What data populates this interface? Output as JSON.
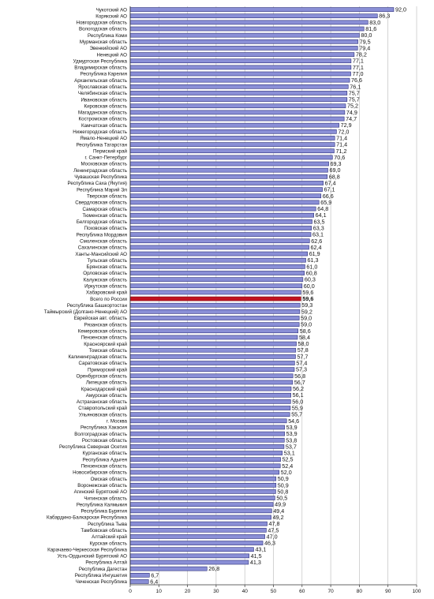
{
  "chart_data": {
    "type": "bar",
    "orientation": "horizontal",
    "title": "",
    "xlabel": "",
    "ylabel": "",
    "xlim": [
      0,
      100
    ],
    "xticks": [
      "0",
      "10",
      "20",
      "30",
      "40",
      "50",
      "60",
      "70",
      "80",
      "90",
      "100"
    ],
    "grid": "vertical",
    "bar_color": "#8a8fd6",
    "bar_border": "#2b2d7a",
    "highlight_color": "#c1121f",
    "highlight_index": 46,
    "categories": [
      "Чукотский АО",
      "Корякский АО",
      "Новгородская область",
      "Вологодская область",
      "Республика Коми",
      "Мурманская область",
      "Эвенкийский АО",
      "Ненецкий АО",
      "Удмуртская Республика",
      "Владимирская область",
      "Республика Карелия",
      "Архангельская область",
      "Ярославская область",
      "Челябинская область",
      "Ивановская область",
      "Кировская область",
      "Магаданская область",
      "Костромская область",
      "Камчатская область",
      "Нижегородская область",
      "Ямало-Ненецкий АО",
      "Республика Татарстан",
      "Пермский край",
      "г. Санкт-Петербург",
      "Московская область",
      "Ленинградская область",
      "Чувашская Республика",
      "Республика Саха (Якутия)",
      "Республика Марий Эл",
      "Тверская область",
      "Свердловская область",
      "Самарская область",
      "Тюменская область",
      "Белгородская область",
      "Псковская область",
      "Республика Мордовия",
      "Смоленская область",
      "Сахалинская область",
      "Ханты-Мансийский АО",
      "Тульская область",
      "Брянская область",
      "Орловская область",
      "Калужская область",
      "Иркутская область",
      "Хабаровский край",
      "Всего по России",
      "Республика Башкортостан",
      "Таймырский (Долгано-Ненецкий) АО",
      "Еврейская авт. область",
      "Рязанская область",
      "Кемеровская область",
      "Пензенская область",
      "Красноярский край",
      "Томская область",
      "Калининградская область",
      "Саратовская область",
      "Приморский край",
      "Оренбургская область",
      "Липецкая область",
      "Краснодарский край",
      "Амурская область",
      "Астраханская область",
      "Ставропольский край",
      "Ульяновская область",
      "г. Москва",
      "Республика Хакасия",
      "Волгоградская область",
      "Ростовская область",
      "Республика Северная Осетия",
      "Курганская область",
      "Республика Адыгея",
      "Пензенская область",
      "Новосибирская область",
      "Омская область",
      "Воронежская область",
      "Агинский Бурятский АО",
      "Читинская область",
      "Республика Калмыкия",
      "Республика Бурятия",
      "Кабардино-Балкарская Республика",
      "Республика Тыва",
      "Тамбовская область",
      "Алтайский край",
      "Курская область",
      "Карачаево-Черкесская Республика",
      "Усть-Ордынский Бурятский АО",
      "Республика Алтай",
      "Республика Дагестан",
      "Республика Ингушетия",
      "Чеченская Республика"
    ],
    "values": [
      92.0,
      86.3,
      83.0,
      81.6,
      80.0,
      79.5,
      79.4,
      78.2,
      77.1,
      77.1,
      77.0,
      76.6,
      76.1,
      75.7,
      75.7,
      75.2,
      74.9,
      74.7,
      72.9,
      72.0,
      71.4,
      71.4,
      71.2,
      70.6,
      69.3,
      69.0,
      68.8,
      67.4,
      67.1,
      66.6,
      65.9,
      64.8,
      64.1,
      63.5,
      63.3,
      63.1,
      62.6,
      62.4,
      61.9,
      61.3,
      61.0,
      60.8,
      60.3,
      60.0,
      59.6,
      59.6,
      59.3,
      59.2,
      59.0,
      59.0,
      58.6,
      58.4,
      58.0,
      57.8,
      57.7,
      57.4,
      57.3,
      56.8,
      56.7,
      56.2,
      56.1,
      56.0,
      55.9,
      55.7,
      54.6,
      53.9,
      53.9,
      53.8,
      53.7,
      53.1,
      52.5,
      52.4,
      52.0,
      50.9,
      50.9,
      50.8,
      50.5,
      49.9,
      49.4,
      49.2,
      47.8,
      47.5,
      47.0,
      46.3,
      43.1,
      41.5,
      41.3,
      26.8,
      6.7,
      6.4
    ],
    "value_labels": [
      "92,0",
      "86,3",
      "83,0",
      "81,6",
      "80,0",
      "79,5",
      "79,4",
      "78,2",
      "77,1",
      "77,1",
      "77,0",
      "76,6",
      "76,1",
      "75,7",
      "75,7",
      "75,2",
      "74,9",
      "74,7",
      "72,9",
      "72,0",
      "71,4",
      "71,4",
      "71,2",
      "70,6",
      "69,3",
      "69,0",
      "68,8",
      "67,4",
      "67,1",
      "66,6",
      "65,9",
      "64,8",
      "64,1",
      "63,5",
      "63,3",
      "63,1",
      "62,6",
      "62,4",
      "61,9",
      "61,3",
      "61,0",
      "60,8",
      "60,3",
      "60,0",
      "59,6",
      "59,6",
      "59,3",
      "59,2",
      "59,0",
      "59,0",
      "58,6",
      "58,4",
      "58,0",
      "57,8",
      "57,7",
      "57,4",
      "57,3",
      "56,8",
      "56,7",
      "56,2",
      "56,1",
      "56,0",
      "55,9",
      "55,7",
      "54,6",
      "53,9",
      "53,9",
      "53,8",
      "53,7",
      "53,1",
      "52,5",
      "52,4",
      "52,0",
      "50,9",
      "50,9",
      "50,8",
      "50,5",
      "49,9",
      "49,4",
      "49,2",
      "47,8",
      "47,5",
      "47,0",
      "46,3",
      "43,1",
      "41,5",
      "41,3",
      "26,8",
      "6,7",
      "6,4"
    ]
  }
}
